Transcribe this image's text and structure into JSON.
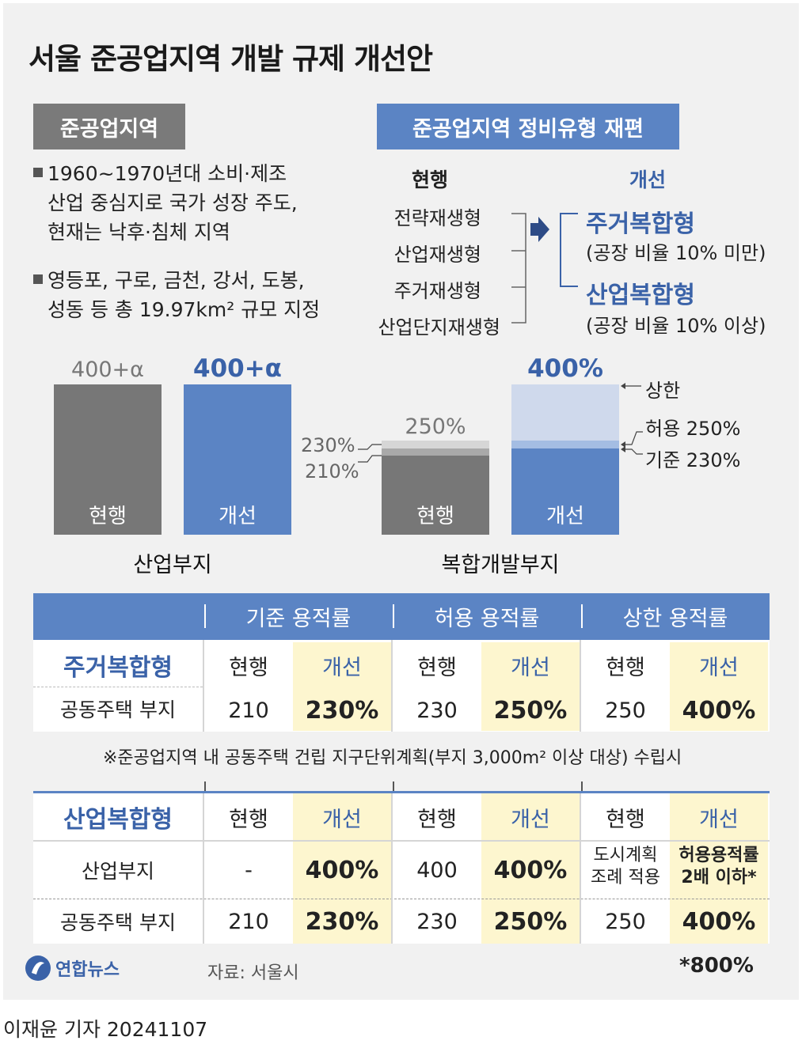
{
  "title": "서울 준공업지역 개발 규제 개선안",
  "left_header": "준공업지역",
  "bullets": [
    [
      "1960~1970년대 소비·제조",
      "산업 중심지로 국가 성장 주도,",
      "현재는 낙후·침체 지역"
    ],
    [
      "영등포, 구로, 금천, 강서, 도봉,",
      "성동 등 총 19.97km² 규모 지정"
    ]
  ],
  "right_header": "준공업지역 정비유형 재편",
  "reorg": {
    "current_label": "현행",
    "improved_label": "개선",
    "current_types": [
      "전략재생형",
      "산업재생형",
      "주거재생형",
      "산업단지재생형"
    ],
    "improved_types": [
      {
        "name": "주거복합형",
        "note": "(공장 비율 10% 미만)"
      },
      {
        "name": "산업복합형",
        "note": "(공장 비율 10% 이상)"
      }
    ]
  },
  "chart_data": [
    {
      "type": "bar",
      "xlabel": "산업부지",
      "categories": [
        "현행",
        "개선"
      ],
      "values": [
        400,
        400
      ],
      "value_labels": [
        "400+α",
        "400+α"
      ],
      "ylim": [
        0,
        400
      ],
      "colors": [
        "#777777",
        "#5b84c4"
      ]
    },
    {
      "type": "bar",
      "xlabel": "복합개발부지",
      "categories": [
        "현행",
        "개선"
      ],
      "series": [
        {
          "values": [
            210,
            230
          ]
        },
        {
          "values": [
            230,
            250
          ]
        },
        {
          "values": [
            250,
            400
          ]
        }
      ],
      "value_labels": [
        "250%",
        "400%"
      ],
      "current_annotations": [
        "230%",
        "210%"
      ],
      "improved_annotations": [
        "상한",
        "허용 250%",
        "기준 230%"
      ],
      "ylim": [
        0,
        400
      ],
      "colors": {
        "current_base": "#777777",
        "current_mid": "#a9a9a9",
        "current_top": "#d6d6d6",
        "improved_base": "#5b84c4",
        "improved_mid": "#a4bde3",
        "improved_top": "#cfd9ec"
      }
    }
  ],
  "table": {
    "columns": [
      "기준 용적률",
      "허용 용적률",
      "상한 용적률"
    ],
    "sub_current": "현행",
    "sub_improved": "개선",
    "residential": {
      "name": "주거복합형",
      "row_label": "공동주택 부지",
      "values": [
        "210",
        "230%",
        "230",
        "250%",
        "250",
        "400%"
      ]
    },
    "note": "※준공업지역 내 공동주택 건립 지구단위계획(부지 3,000m² 이상 대상) 수립시",
    "industrial": {
      "name": "산업복합형",
      "rows": [
        {
          "label": "산업부지",
          "values": [
            "-",
            "400%",
            "400",
            "400%"
          ],
          "cap_current": [
            "도시계획",
            "조례 적용"
          ],
          "cap_improved": [
            "허용용적률",
            "2배 이하*"
          ]
        },
        {
          "label": "공동주택 부지",
          "values": [
            "210",
            "230%",
            "230",
            "250%",
            "250",
            "400%"
          ]
        }
      ]
    },
    "footnote": "*800%"
  },
  "source": "자료: 서울시",
  "logo": "연합뉴스",
  "byline": "이재윤 기자 20241107",
  "accent_color": "#5b84c4",
  "highlight_color": "#fdf6cf"
}
